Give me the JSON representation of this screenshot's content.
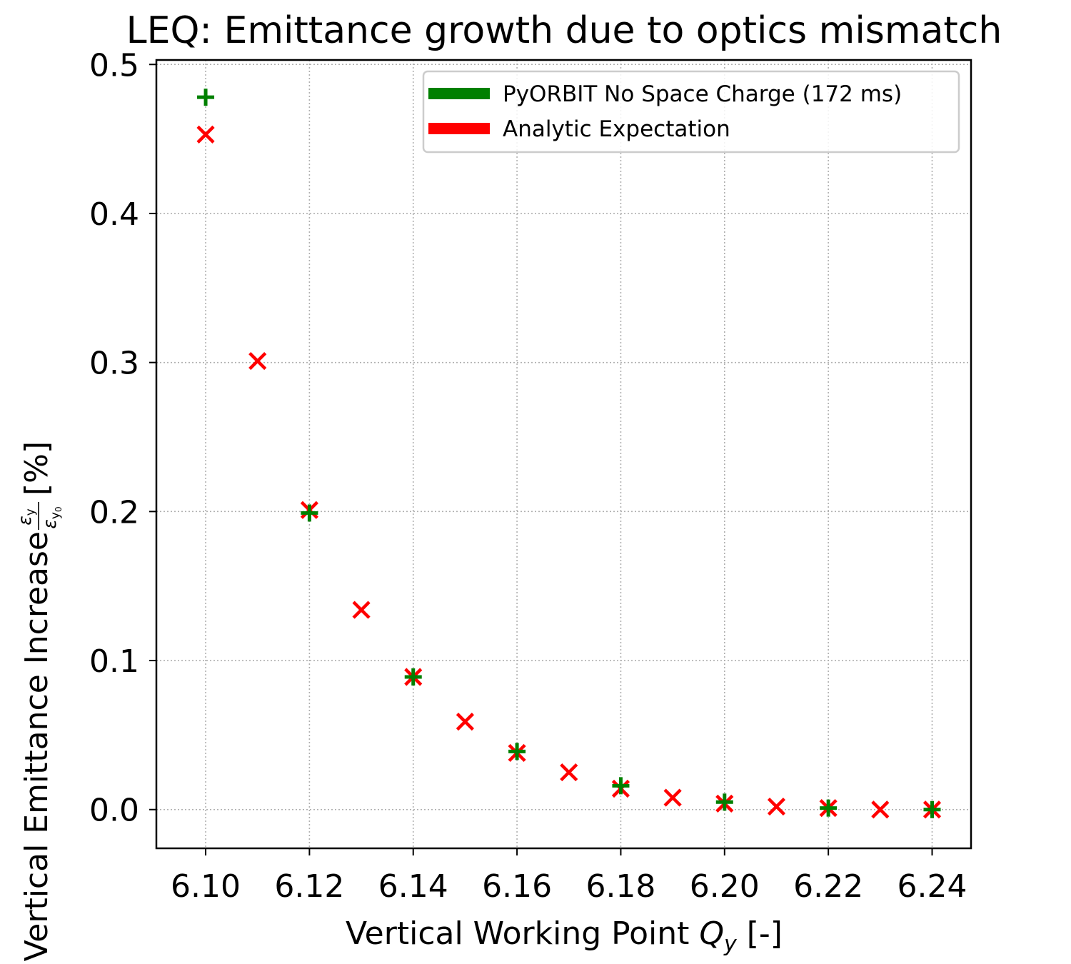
{
  "chart_data": {
    "type": "scatter",
    "title": "LEQ: Emittance growth due to optics mismatch",
    "xlabel_main": "Vertical Working Point ",
    "xlabel_var": "Q",
    "xlabel_sub": "y",
    "xlabel_unit": " [-]",
    "ylabel_main": "Vertical Emittance Increase ",
    "ylabel_frac_num": "ε",
    "ylabel_frac_num_sub": "y",
    "ylabel_frac_den": "ε",
    "ylabel_frac_den_sub": "y",
    "ylabel_frac_den_subsub": "0",
    "ylabel_unit": " [%]",
    "xlim": [
      6.0905,
      6.2475
    ],
    "ylim": [
      -0.026,
      0.503
    ],
    "x_ticks": [
      6.1,
      6.12,
      6.14,
      6.16,
      6.18,
      6.2,
      6.22,
      6.24
    ],
    "x_tick_labels": [
      "6.10",
      "6.12",
      "6.14",
      "6.16",
      "6.18",
      "6.20",
      "6.22",
      "6.24"
    ],
    "y_ticks": [
      0.0,
      0.1,
      0.2,
      0.3,
      0.4,
      0.5
    ],
    "y_tick_labels": [
      "0.0",
      "0.1",
      "0.2",
      "0.3",
      "0.4",
      "0.5"
    ],
    "grid": true,
    "legend_position": "top-right",
    "series": [
      {
        "name": "PyORBIT No Space Charge (172 ms)",
        "marker": "plus",
        "color": "#008000",
        "x": [
          6.1,
          6.12,
          6.14,
          6.16,
          6.18,
          6.2,
          6.22,
          6.24
        ],
        "y": [
          0.478,
          0.199,
          0.089,
          0.039,
          0.016,
          0.005,
          0.001,
          0.0
        ]
      },
      {
        "name": "Analytic Expectation",
        "marker": "x",
        "color": "#ff0000",
        "x": [
          6.1,
          6.11,
          6.12,
          6.13,
          6.14,
          6.15,
          6.16,
          6.17,
          6.18,
          6.19,
          6.2,
          6.21,
          6.22,
          6.23,
          6.24
        ],
        "y": [
          0.453,
          0.301,
          0.201,
          0.134,
          0.089,
          0.059,
          0.038,
          0.025,
          0.014,
          0.008,
          0.004,
          0.002,
          0.001,
          0.0,
          0.0
        ]
      }
    ]
  }
}
